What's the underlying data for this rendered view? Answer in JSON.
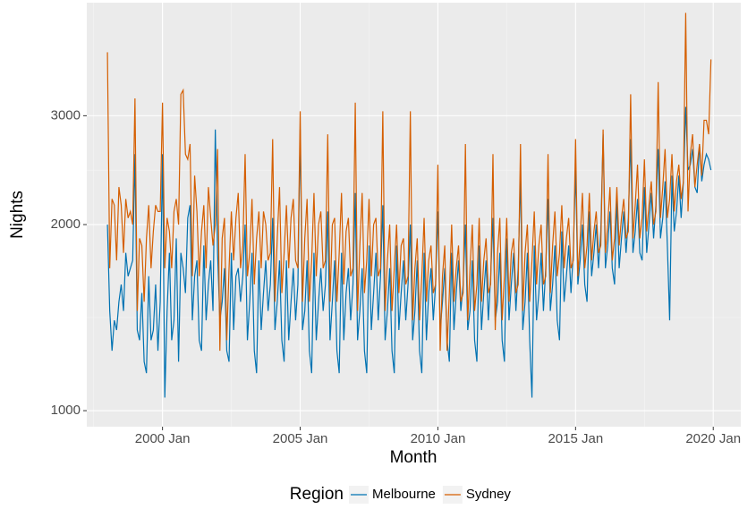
{
  "chart_data": {
    "type": "line",
    "x_label": "Month",
    "y_label": "Nights",
    "legend_title": "Region",
    "legend_position": "bottom",
    "log_y": true,
    "grid": true,
    "xlim": [
      "1997 Apr",
      "2021 Jan"
    ],
    "xticks": [
      "2000 Jan",
      "2005 Jan",
      "2010 Jan",
      "2015 Jan",
      "2020 Jan"
    ],
    "ylim": [
      942,
      4571
    ],
    "yticks": [
      1000,
      2000,
      3000
    ],
    "x": [
      "1998 Jan",
      "1998 Feb",
      "1998 Mar",
      "1998 Apr",
      "1998 May",
      "1998 Jun",
      "1998 Jul",
      "1998 Aug",
      "1998 Sep",
      "1998 Oct",
      "1998 Nov",
      "1998 Dec",
      "1999 Jan",
      "1999 Feb",
      "1999 Mar",
      "1999 Apr",
      "1999 May",
      "1999 Jun",
      "1999 Jul",
      "1999 Aug",
      "1999 Sep",
      "1999 Oct",
      "1999 Nov",
      "1999 Dec",
      "2000 Jan",
      "2000 Feb",
      "2000 Mar",
      "2000 Apr",
      "2000 May",
      "2000 Jun",
      "2000 Jul",
      "2000 Aug",
      "2000 Sep",
      "2000 Oct",
      "2000 Nov",
      "2000 Dec",
      "2001 Jan",
      "2001 Feb",
      "2001 Mar",
      "2001 Apr",
      "2001 May",
      "2001 Jun",
      "2001 Jul",
      "2001 Aug",
      "2001 Sep",
      "2001 Oct",
      "2001 Nov",
      "2001 Dec",
      "2002 Jan",
      "2002 Feb",
      "2002 Mar",
      "2002 Apr",
      "2002 May",
      "2002 Jun",
      "2002 Jul",
      "2002 Aug",
      "2002 Sep",
      "2002 Oct",
      "2002 Nov",
      "2002 Dec",
      "2003 Jan",
      "2003 Feb",
      "2003 Mar",
      "2003 Apr",
      "2003 May",
      "2003 Jun",
      "2003 Jul",
      "2003 Aug",
      "2003 Sep",
      "2003 Oct",
      "2003 Nov",
      "2003 Dec",
      "2004 Jan",
      "2004 Feb",
      "2004 Mar",
      "2004 Apr",
      "2004 May",
      "2004 Jun",
      "2004 Jul",
      "2004 Aug",
      "2004 Sep",
      "2004 Oct",
      "2004 Nov",
      "2004 Dec",
      "2005 Jan",
      "2005 Feb",
      "2005 Mar",
      "2005 Apr",
      "2005 May",
      "2005 Jun",
      "2005 Jul",
      "2005 Aug",
      "2005 Sep",
      "2005 Oct",
      "2005 Nov",
      "2005 Dec",
      "2006 Jan",
      "2006 Feb",
      "2006 Mar",
      "2006 Apr",
      "2006 May",
      "2006 Jun",
      "2006 Jul",
      "2006 Aug",
      "2006 Sep",
      "2006 Oct",
      "2006 Nov",
      "2006 Dec",
      "2007 Jan",
      "2007 Feb",
      "2007 Mar",
      "2007 Apr",
      "2007 May",
      "2007 Jun",
      "2007 Jul",
      "2007 Aug",
      "2007 Sep",
      "2007 Oct",
      "2007 Nov",
      "2007 Dec",
      "2008 Jan",
      "2008 Feb",
      "2008 Mar",
      "2008 Apr",
      "2008 May",
      "2008 Jun",
      "2008 Jul",
      "2008 Aug",
      "2008 Sep",
      "2008 Oct",
      "2008 Nov",
      "2008 Dec",
      "2009 Jan",
      "2009 Feb",
      "2009 Mar",
      "2009 Apr",
      "2009 May",
      "2009 Jun",
      "2009 Jul",
      "2009 Aug",
      "2009 Sep",
      "2009 Oct",
      "2009 Nov",
      "2009 Dec",
      "2010 Jan",
      "2010 Feb",
      "2010 Mar",
      "2010 Apr",
      "2010 May",
      "2010 Jun",
      "2010 Jul",
      "2010 Aug",
      "2010 Sep",
      "2010 Oct",
      "2010 Nov",
      "2010 Dec",
      "2011 Jan",
      "2011 Feb",
      "2011 Mar",
      "2011 Apr",
      "2011 May",
      "2011 Jun",
      "2011 Jul",
      "2011 Aug",
      "2011 Sep",
      "2011 Oct",
      "2011 Nov",
      "2011 Dec",
      "2012 Jan",
      "2012 Feb",
      "2012 Mar",
      "2012 Apr",
      "2012 May",
      "2012 Jun",
      "2012 Jul",
      "2012 Aug",
      "2012 Sep",
      "2012 Oct",
      "2012 Nov",
      "2012 Dec",
      "2013 Jan",
      "2013 Feb",
      "2013 Mar",
      "2013 Apr",
      "2013 May",
      "2013 Jun",
      "2013 Jul",
      "2013 Aug",
      "2013 Sep",
      "2013 Oct",
      "2013 Nov",
      "2013 Dec",
      "2014 Jan",
      "2014 Feb",
      "2014 Mar",
      "2014 Apr",
      "2014 May",
      "2014 Jun",
      "2014 Jul",
      "2014 Aug",
      "2014 Sep",
      "2014 Oct",
      "2014 Nov",
      "2014 Dec",
      "2015 Jan",
      "2015 Feb",
      "2015 Mar",
      "2015 Apr",
      "2015 May",
      "2015 Jun",
      "2015 Jul",
      "2015 Aug",
      "2015 Sep",
      "2015 Oct",
      "2015 Nov",
      "2015 Dec",
      "2016 Jan",
      "2016 Feb",
      "2016 Mar",
      "2016 Apr",
      "2016 May",
      "2016 Jun",
      "2016 Jul",
      "2016 Aug",
      "2016 Sep",
      "2016 Oct",
      "2016 Nov",
      "2016 Dec",
      "2017 Jan",
      "2017 Feb",
      "2017 Mar",
      "2017 Apr",
      "2017 May",
      "2017 Jun",
      "2017 Jul",
      "2017 Aug",
      "2017 Sep",
      "2017 Oct",
      "2017 Nov",
      "2017 Dec",
      "2018 Jan",
      "2018 Feb",
      "2018 Mar",
      "2018 Apr",
      "2018 May",
      "2018 Jun",
      "2018 Jul",
      "2018 Aug",
      "2018 Sep",
      "2018 Oct",
      "2018 Nov",
      "2018 Dec",
      "2019 Jan",
      "2019 Feb",
      "2019 Mar",
      "2019 Apr",
      "2019 May",
      "2019 Jun",
      "2019 Jul",
      "2019 Aug",
      "2019 Sep",
      "2019 Oct",
      "2019 Nov",
      "2019 Dec"
    ],
    "series": [
      {
        "name": "Melbourne",
        "color": "#0072B2",
        "values": [
          2000,
          1450,
          1250,
          1400,
          1350,
          1500,
          1600,
          1450,
          1800,
          1650,
          1700,
          1750,
          2600,
          1350,
          1300,
          1550,
          1200,
          1150,
          1650,
          1300,
          1350,
          1600,
          1250,
          1500,
          2600,
          1050,
          1450,
          1800,
          1300,
          1400,
          1900,
          1200,
          1800,
          1700,
          1550,
          2050,
          2150,
          1400,
          1650,
          1750,
          1300,
          1250,
          1850,
          1400,
          1600,
          1750,
          1450,
          2850,
          1800,
          1400,
          1500,
          1700,
          1250,
          1200,
          1800,
          1350,
          1650,
          1700,
          1500,
          1650,
          2000,
          1300,
          1500,
          1800,
          1250,
          1150,
          1750,
          1350,
          1550,
          1750,
          1450,
          1600,
          2050,
          1350,
          1500,
          1750,
          1300,
          1200,
          1750,
          1300,
          1500,
          1700,
          1400,
          1600,
          2850,
          1350,
          1450,
          1750,
          1250,
          1150,
          1800,
          1300,
          1500,
          1700,
          1450,
          1600,
          2100,
          1300,
          1500,
          1750,
          1250,
          1150,
          1800,
          1300,
          1550,
          1700,
          1400,
          1600,
          2250,
          1300,
          1450,
          1700,
          1250,
          1150,
          1850,
          1350,
          1550,
          1800,
          1400,
          1650,
          2150,
          1300,
          1450,
          1700,
          1250,
          1150,
          1850,
          1350,
          1550,
          1750,
          1400,
          1600,
          2000,
          1300,
          1450,
          1750,
          1250,
          1150,
          1800,
          1300,
          1550,
          1700,
          1400,
          1600,
          2100,
          1350,
          1500,
          1700,
          1300,
          1200,
          1800,
          1350,
          1550,
          1750,
          1450,
          1600,
          2000,
          1350,
          1450,
          1750,
          1300,
          1200,
          1850,
          1350,
          1550,
          1750,
          1400,
          1650,
          2050,
          1400,
          1500,
          1800,
          1300,
          1200,
          1900,
          1400,
          1600,
          1800,
          1450,
          1700,
          2400,
          1350,
          1500,
          1800,
          1300,
          1050,
          1850,
          1400,
          1550,
          1800,
          1450,
          1700,
          2200,
          1450,
          1600,
          1850,
          1400,
          1300,
          1950,
          1500,
          1650,
          1850,
          1550,
          1800,
          2450,
          1600,
          1750,
          2000,
          1600,
          1500,
          2100,
          1650,
          1800,
          2000,
          1700,
          1950,
          2800,
          1700,
          1850,
          2100,
          1700,
          1600,
          2200,
          1700,
          1900,
          2100,
          1800,
          2050,
          2750,
          1800,
          1950,
          2200,
          1800,
          1750,
          2300,
          1800,
          2000,
          2250,
          1900,
          2150,
          2650,
          1900,
          2050,
          2350,
          1850,
          1400,
          2400,
          1950,
          2100,
          2400,
          2050,
          2350,
          3100,
          2450,
          2500,
          2650,
          2300,
          2250,
          2700,
          2350,
          2500,
          2600,
          2550,
          2450
        ]
      },
      {
        "name": "Sydney",
        "color": "#D55E00",
        "values": [
          3800,
          1700,
          2200,
          2150,
          1750,
          2300,
          2150,
          1800,
          2200,
          2050,
          2100,
          2000,
          3200,
          1450,
          1900,
          1850,
          1500,
          1900,
          2150,
          1700,
          1950,
          2150,
          2100,
          2100,
          3150,
          1700,
          2050,
          1950,
          1700,
          2100,
          2200,
          2000,
          3250,
          3300,
          2600,
          2550,
          2700,
          1650,
          2400,
          2100,
          1650,
          1950,
          2150,
          1700,
          2300,
          2050,
          1850,
          2000,
          2650,
          1250,
          1900,
          2050,
          1300,
          1700,
          2100,
          1750,
          2050,
          2250,
          1700,
          1850,
          2600,
          1650,
          1800,
          2200,
          1600,
          1900,
          2100,
          1700,
          2100,
          2000,
          1750,
          1800,
          2750,
          1500,
          1900,
          2300,
          1550,
          1800,
          2150,
          1700,
          2050,
          2200,
          1750,
          1700,
          3050,
          1500,
          1900,
          2200,
          1500,
          1750,
          2250,
          1650,
          2000,
          2100,
          1700,
          1750,
          2800,
          1500,
          2000,
          2050,
          1500,
          1800,
          2250,
          1600,
          1950,
          2050,
          1650,
          1700,
          3150,
          1450,
          1850,
          2250,
          1550,
          1750,
          2200,
          1650,
          2000,
          2050,
          1650,
          1700,
          3050,
          1450,
          1750,
          2000,
          1450,
          1700,
          2000,
          1550,
          1850,
          1900,
          1600,
          1650,
          3050,
          1400,
          1700,
          1900,
          1400,
          1650,
          2050,
          1500,
          1750,
          1850,
          1550,
          1600,
          2500,
          1250,
          1650,
          1850,
          1250,
          1550,
          2000,
          1500,
          1700,
          1850,
          1500,
          1550,
          2700,
          1400,
          1700,
          2000,
          1450,
          1600,
          2050,
          1500,
          1750,
          1900,
          1550,
          1600,
          2600,
          1350,
          1800,
          2050,
          1400,
          1650,
          2050,
          1500,
          1800,
          1900,
          1550,
          1600,
          2700,
          1450,
          1800,
          2000,
          1500,
          1750,
          2100,
          1600,
          1850,
          2000,
          1600,
          1650,
          2600,
          1550,
          1850,
          2100,
          1650,
          1800,
          2150,
          1700,
          1900,
          2050,
          1700,
          1750,
          2750,
          1650,
          1900,
          2250,
          1700,
          1850,
          2250,
          1750,
          1950,
          2100,
          1800,
          1850,
          2850,
          1800,
          2000,
          2300,
          1750,
          1900,
          2300,
          1850,
          2050,
          2200,
          1900,
          1950,
          3250,
          1900,
          2150,
          2500,
          1900,
          2050,
          2550,
          1950,
          2150,
          2350,
          2000,
          2100,
          3400,
          2050,
          2300,
          2650,
          2050,
          2200,
          2600,
          2100,
          2350,
          2500,
          2200,
          2350,
          4400,
          2100,
          2600,
          2800,
          2300,
          2500,
          2700,
          2400,
          2950,
          2950,
          2800,
          3700
        ]
      }
    ]
  }
}
